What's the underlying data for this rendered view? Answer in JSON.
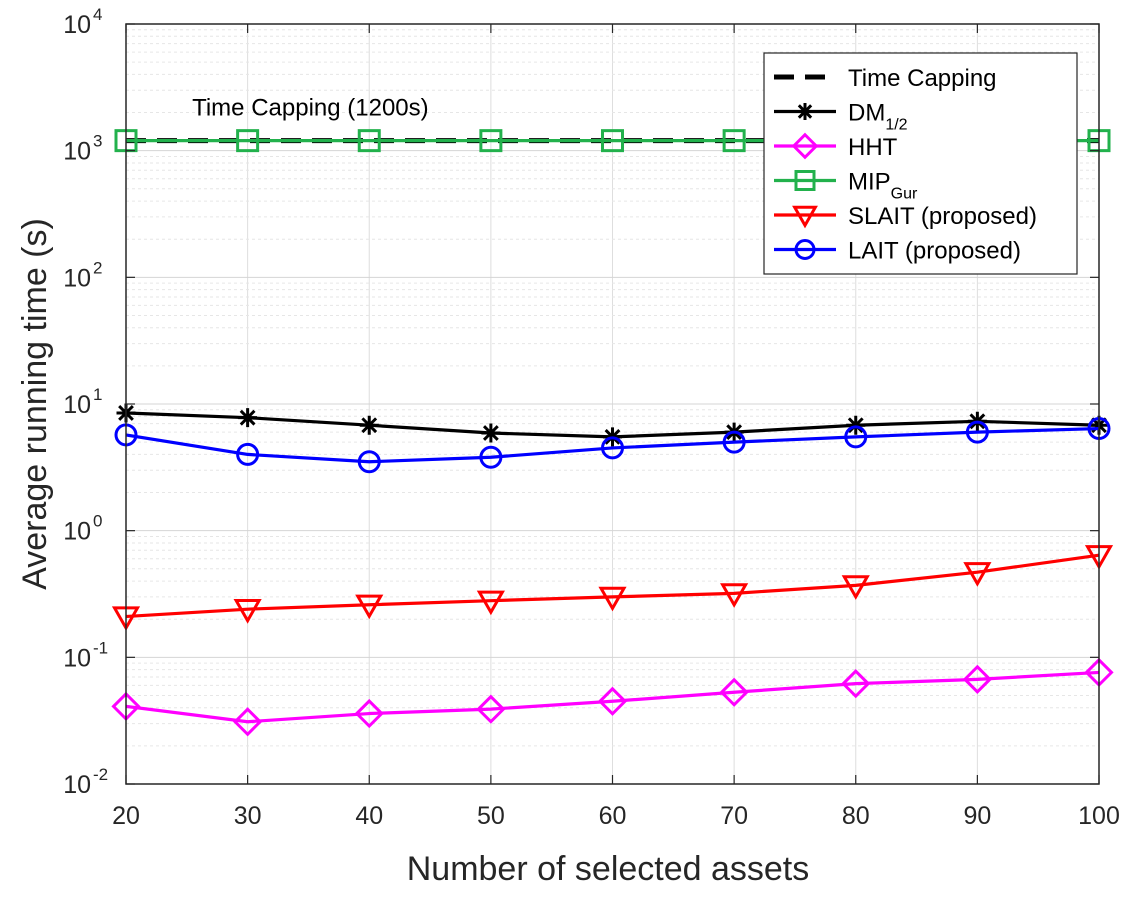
{
  "chart_data": {
    "type": "line",
    "xlabel": "Number of selected assets",
    "ylabel": "Average running time (s)",
    "yscale": "log",
    "xlim": [
      20,
      100
    ],
    "ylim": [
      0.01,
      10000
    ],
    "grid": true,
    "minor_grid": true,
    "legend_position": "top-right",
    "x": [
      20,
      30,
      40,
      50,
      60,
      70,
      80,
      90,
      100
    ],
    "x_tick_labels": [
      "20",
      "30",
      "40",
      "50",
      "60",
      "70",
      "80",
      "90",
      "100"
    ],
    "y_ticks": [
      {
        "value": 0.01,
        "base": "10",
        "exp": "-2"
      },
      {
        "value": 0.1,
        "base": "10",
        "exp": "-1"
      },
      {
        "value": 1,
        "base": "10",
        "exp": "0"
      },
      {
        "value": 10,
        "base": "10",
        "exp": "1"
      },
      {
        "value": 100,
        "base": "10",
        "exp": "2"
      },
      {
        "value": 1000,
        "base": "10",
        "exp": "3"
      },
      {
        "value": 10000,
        "base": "10",
        "exp": "4"
      }
    ],
    "annotation": {
      "text": "Time Capping (1200s)",
      "x": 20.5,
      "y": 1700
    },
    "series": [
      {
        "name": "Time Capping",
        "sub": "",
        "color": "#000000",
        "dash": true,
        "marker": "none",
        "values": [
          1200,
          1200,
          1200,
          1200,
          1200,
          1200,
          1200,
          1200,
          1200
        ]
      },
      {
        "name": "DM",
        "sub": "1/2",
        "color": "#000000",
        "dash": false,
        "marker": "asterisk",
        "values": [
          8.5,
          7.8,
          6.8,
          5.9,
          5.5,
          6.0,
          6.8,
          7.3,
          6.8
        ]
      },
      {
        "name": "HHT",
        "sub": "",
        "color": "#ff00ff",
        "dash": false,
        "marker": "diamond",
        "values": [
          0.041,
          0.031,
          0.036,
          0.039,
          0.045,
          0.053,
          0.062,
          0.067,
          0.076
        ]
      },
      {
        "name": "MIP",
        "sub": "Gur",
        "color": "#22b14c",
        "dash": false,
        "marker": "square",
        "values": [
          1200,
          1200,
          1200,
          1200,
          1200,
          1200,
          1200,
          1200,
          1200
        ]
      },
      {
        "name": "SLAIT (proposed)",
        "sub": "",
        "color": "#ff0000",
        "dash": false,
        "marker": "triangle-down",
        "values": [
          0.21,
          0.24,
          0.26,
          0.28,
          0.3,
          0.32,
          0.37,
          0.47,
          0.64
        ]
      },
      {
        "name": "LAIT (proposed)",
        "sub": "",
        "color": "#0000ff",
        "dash": false,
        "marker": "circle",
        "values": [
          5.7,
          4.0,
          3.5,
          3.8,
          4.5,
          5.0,
          5.5,
          6.0,
          6.4
        ]
      }
    ]
  }
}
